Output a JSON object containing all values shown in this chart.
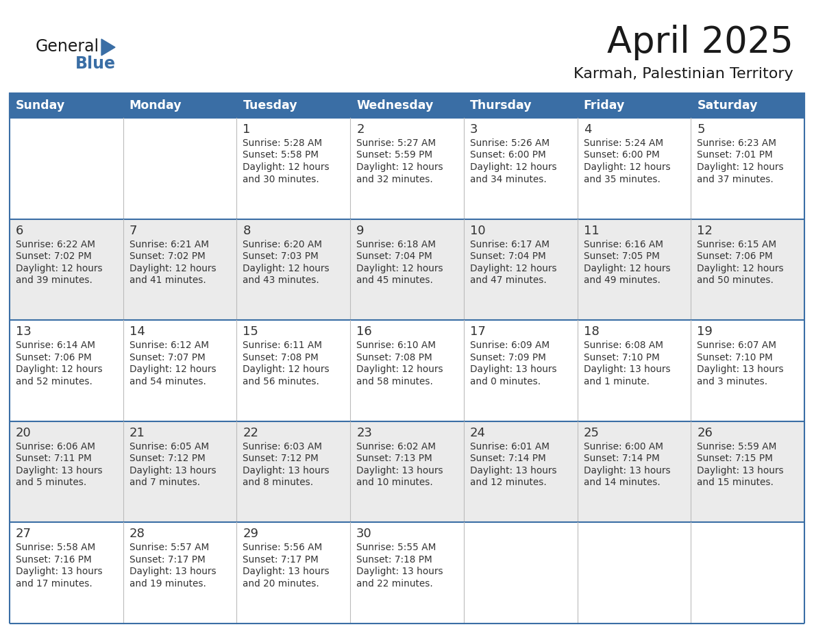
{
  "title": "April 2025",
  "subtitle": "Karmah, Palestinian Territory",
  "days_of_week": [
    "Sunday",
    "Monday",
    "Tuesday",
    "Wednesday",
    "Thursday",
    "Friday",
    "Saturday"
  ],
  "header_bg": "#3A6EA5",
  "header_fg": "#FFFFFF",
  "row_bg_odd": "#FFFFFF",
  "row_bg_even": "#EBEBEB",
  "border_color": "#3A6EA5",
  "cell_border_color": "#AAAAAA",
  "text_color": "#333333",
  "num_color": "#333333",
  "calendar": [
    [
      {
        "day": "",
        "info": ""
      },
      {
        "day": "",
        "info": ""
      },
      {
        "day": "1",
        "info": "Sunrise: 5:28 AM\nSunset: 5:58 PM\nDaylight: 12 hours\nand 30 minutes."
      },
      {
        "day": "2",
        "info": "Sunrise: 5:27 AM\nSunset: 5:59 PM\nDaylight: 12 hours\nand 32 minutes."
      },
      {
        "day": "3",
        "info": "Sunrise: 5:26 AM\nSunset: 6:00 PM\nDaylight: 12 hours\nand 34 minutes."
      },
      {
        "day": "4",
        "info": "Sunrise: 5:24 AM\nSunset: 6:00 PM\nDaylight: 12 hours\nand 35 minutes."
      },
      {
        "day": "5",
        "info": "Sunrise: 6:23 AM\nSunset: 7:01 PM\nDaylight: 12 hours\nand 37 minutes."
      }
    ],
    [
      {
        "day": "6",
        "info": "Sunrise: 6:22 AM\nSunset: 7:02 PM\nDaylight: 12 hours\nand 39 minutes."
      },
      {
        "day": "7",
        "info": "Sunrise: 6:21 AM\nSunset: 7:02 PM\nDaylight: 12 hours\nand 41 minutes."
      },
      {
        "day": "8",
        "info": "Sunrise: 6:20 AM\nSunset: 7:03 PM\nDaylight: 12 hours\nand 43 minutes."
      },
      {
        "day": "9",
        "info": "Sunrise: 6:18 AM\nSunset: 7:04 PM\nDaylight: 12 hours\nand 45 minutes."
      },
      {
        "day": "10",
        "info": "Sunrise: 6:17 AM\nSunset: 7:04 PM\nDaylight: 12 hours\nand 47 minutes."
      },
      {
        "day": "11",
        "info": "Sunrise: 6:16 AM\nSunset: 7:05 PM\nDaylight: 12 hours\nand 49 minutes."
      },
      {
        "day": "12",
        "info": "Sunrise: 6:15 AM\nSunset: 7:06 PM\nDaylight: 12 hours\nand 50 minutes."
      }
    ],
    [
      {
        "day": "13",
        "info": "Sunrise: 6:14 AM\nSunset: 7:06 PM\nDaylight: 12 hours\nand 52 minutes."
      },
      {
        "day": "14",
        "info": "Sunrise: 6:12 AM\nSunset: 7:07 PM\nDaylight: 12 hours\nand 54 minutes."
      },
      {
        "day": "15",
        "info": "Sunrise: 6:11 AM\nSunset: 7:08 PM\nDaylight: 12 hours\nand 56 minutes."
      },
      {
        "day": "16",
        "info": "Sunrise: 6:10 AM\nSunset: 7:08 PM\nDaylight: 12 hours\nand 58 minutes."
      },
      {
        "day": "17",
        "info": "Sunrise: 6:09 AM\nSunset: 7:09 PM\nDaylight: 13 hours\nand 0 minutes."
      },
      {
        "day": "18",
        "info": "Sunrise: 6:08 AM\nSunset: 7:10 PM\nDaylight: 13 hours\nand 1 minute."
      },
      {
        "day": "19",
        "info": "Sunrise: 6:07 AM\nSunset: 7:10 PM\nDaylight: 13 hours\nand 3 minutes."
      }
    ],
    [
      {
        "day": "20",
        "info": "Sunrise: 6:06 AM\nSunset: 7:11 PM\nDaylight: 13 hours\nand 5 minutes."
      },
      {
        "day": "21",
        "info": "Sunrise: 6:05 AM\nSunset: 7:12 PM\nDaylight: 13 hours\nand 7 minutes."
      },
      {
        "day": "22",
        "info": "Sunrise: 6:03 AM\nSunset: 7:12 PM\nDaylight: 13 hours\nand 8 minutes."
      },
      {
        "day": "23",
        "info": "Sunrise: 6:02 AM\nSunset: 7:13 PM\nDaylight: 13 hours\nand 10 minutes."
      },
      {
        "day": "24",
        "info": "Sunrise: 6:01 AM\nSunset: 7:14 PM\nDaylight: 13 hours\nand 12 minutes."
      },
      {
        "day": "25",
        "info": "Sunrise: 6:00 AM\nSunset: 7:14 PM\nDaylight: 13 hours\nand 14 minutes."
      },
      {
        "day": "26",
        "info": "Sunrise: 5:59 AM\nSunset: 7:15 PM\nDaylight: 13 hours\nand 15 minutes."
      }
    ],
    [
      {
        "day": "27",
        "info": "Sunrise: 5:58 AM\nSunset: 7:16 PM\nDaylight: 13 hours\nand 17 minutes."
      },
      {
        "day": "28",
        "info": "Sunrise: 5:57 AM\nSunset: 7:17 PM\nDaylight: 13 hours\nand 19 minutes."
      },
      {
        "day": "29",
        "info": "Sunrise: 5:56 AM\nSunset: 7:17 PM\nDaylight: 13 hours\nand 20 minutes."
      },
      {
        "day": "30",
        "info": "Sunrise: 5:55 AM\nSunset: 7:18 PM\nDaylight: 13 hours\nand 22 minutes."
      },
      {
        "day": "",
        "info": ""
      },
      {
        "day": "",
        "info": ""
      },
      {
        "day": "",
        "info": ""
      }
    ]
  ],
  "logo_general_color": "#1A1A1A",
  "logo_blue_color": "#3A6EA5",
  "logo_triangle_color": "#3A6EA5",
  "title_color": "#1A1A1A",
  "subtitle_color": "#1A1A1A"
}
